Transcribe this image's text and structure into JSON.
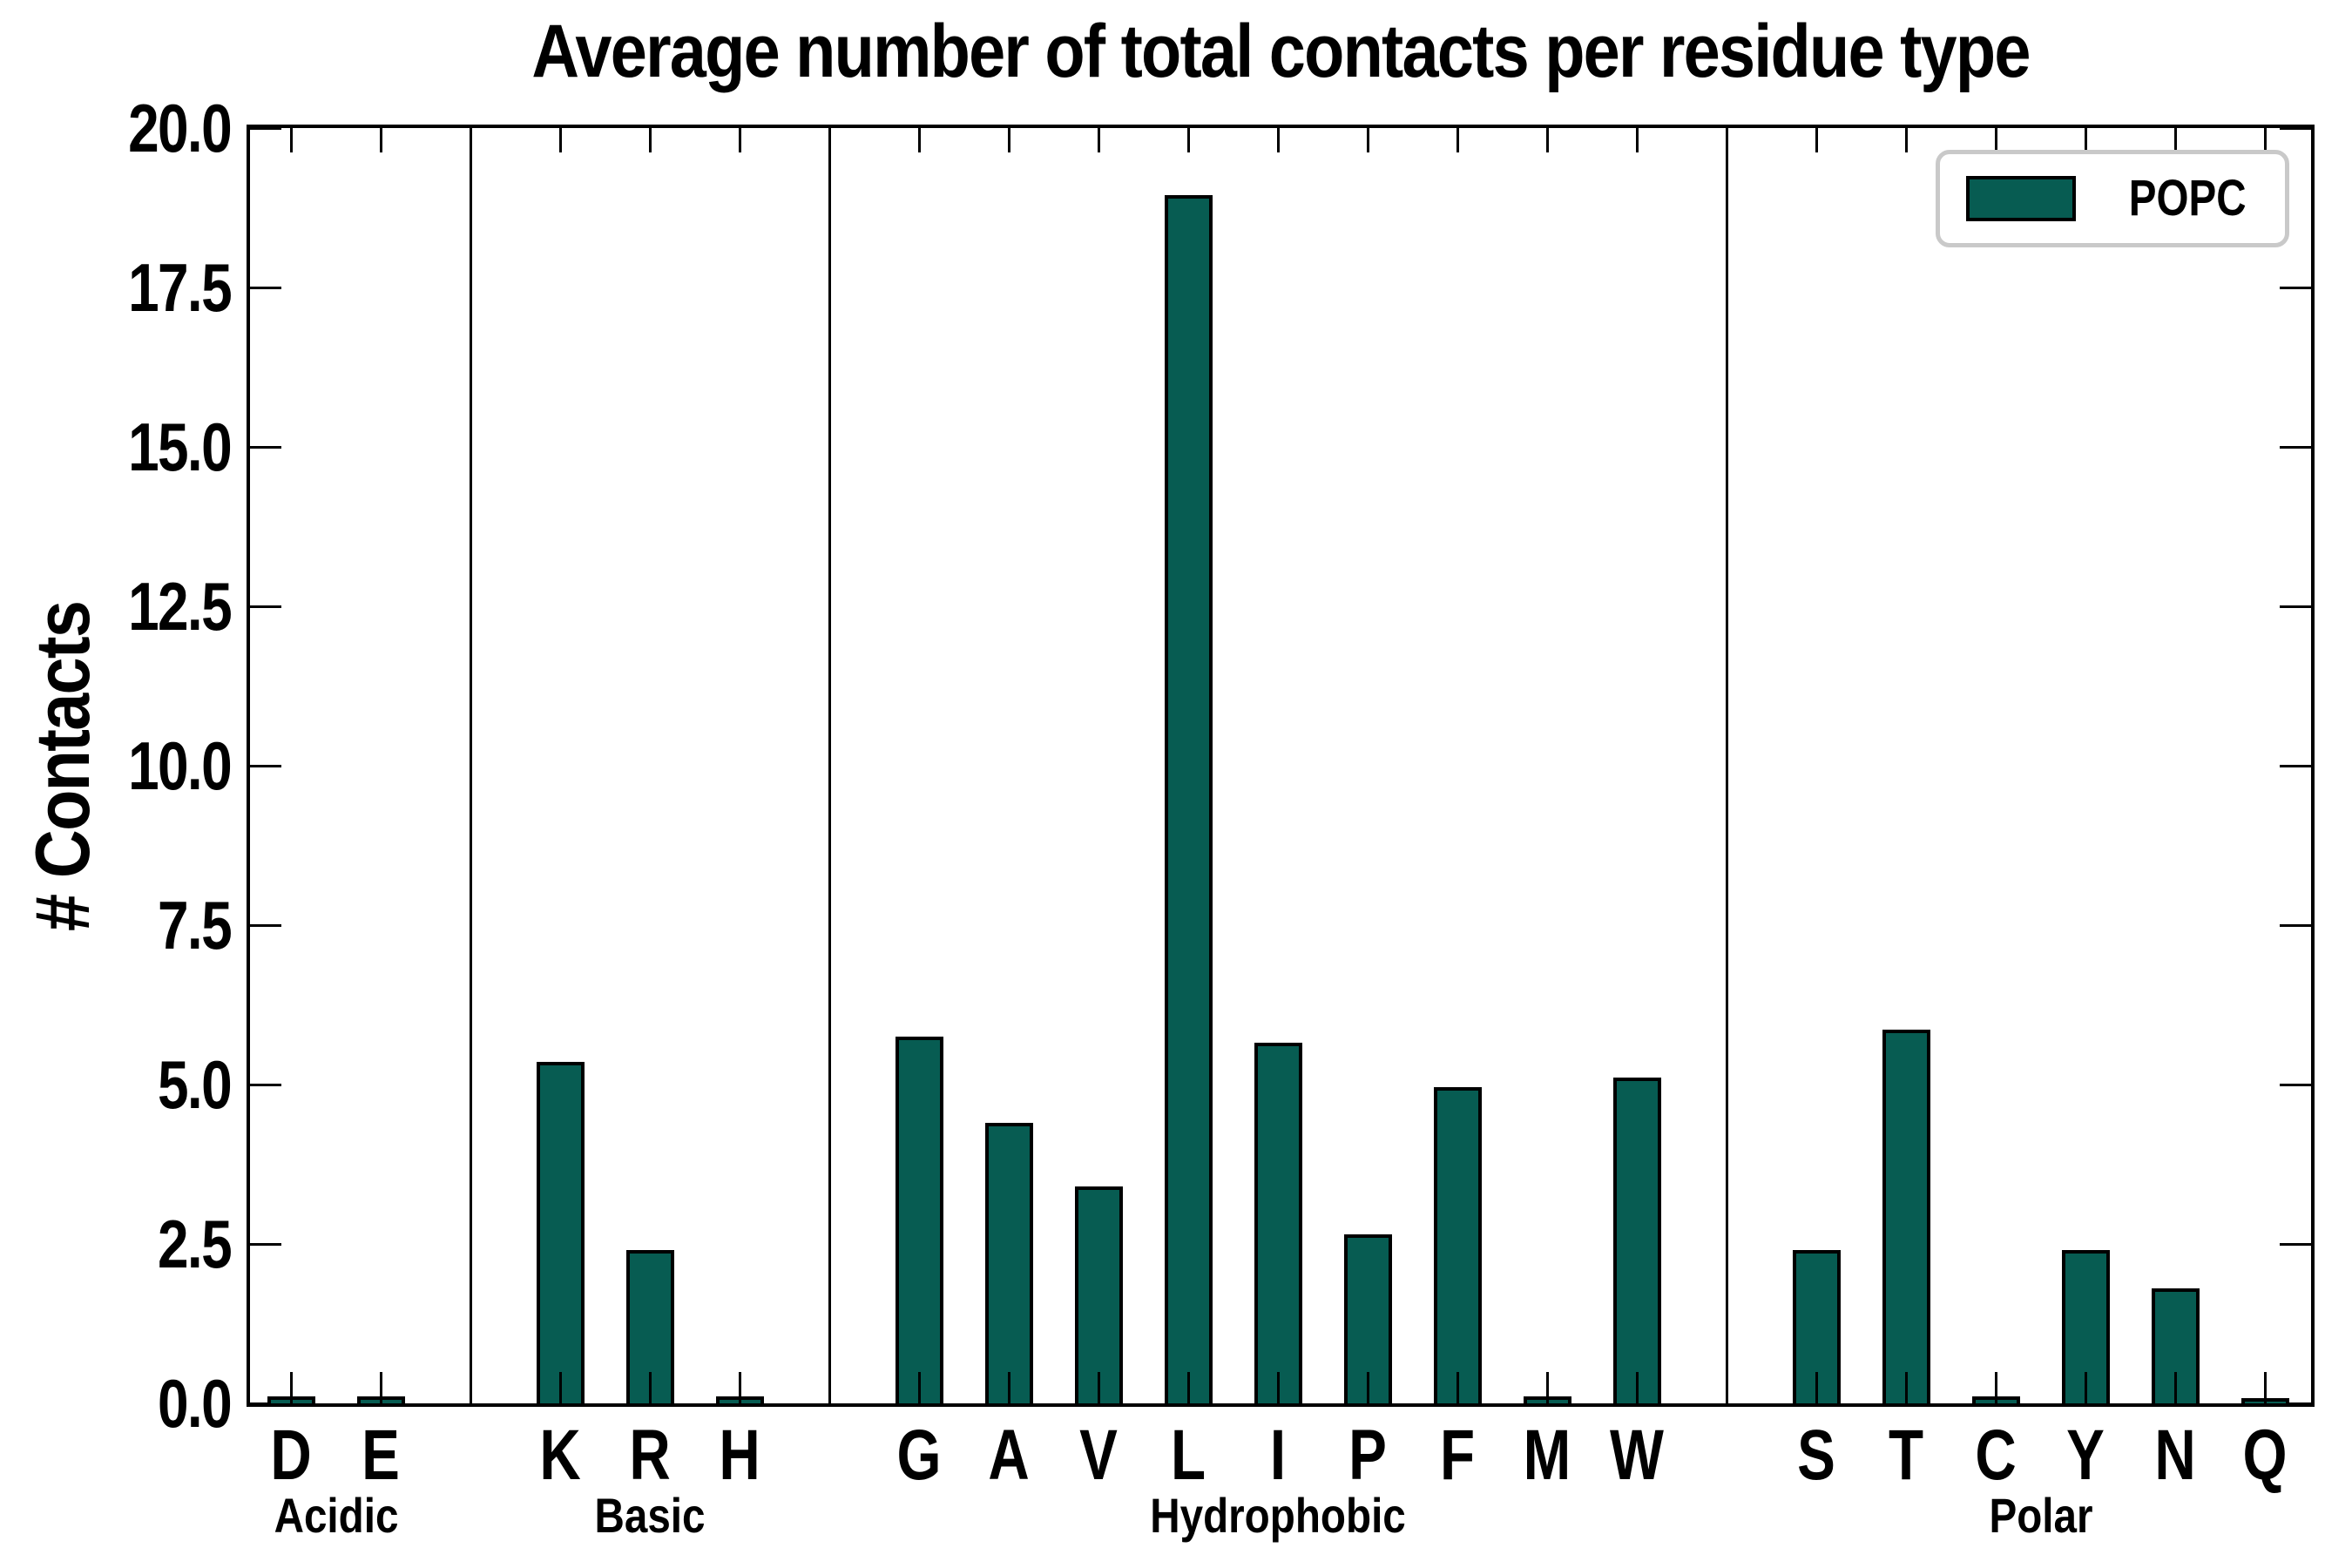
{
  "chart_data": {
    "type": "bar",
    "title": "Average number of total contacts per residue type",
    "ylabel": "# Contacts",
    "ylim": [
      0,
      20
    ],
    "ytick_step": 2.5,
    "ytick_labels": [
      "0.0",
      "2.5",
      "5.0",
      "7.5",
      "10.0",
      "12.5",
      "15.0",
      "17.5",
      "20.0"
    ],
    "grid": false,
    "legend": {
      "position": "upper right",
      "entries": [
        {
          "label": "POPC",
          "color": "#075c52",
          "edge_color": "#000000"
        }
      ]
    },
    "bar_color": "#075c52",
    "bar_edge_color": "#000000",
    "groups": [
      {
        "label": "Acidic",
        "categories": [
          "D",
          "E"
        ],
        "values": [
          0.05,
          0.05
        ]
      },
      {
        "label": "Basic",
        "categories": [
          "K",
          "R",
          "H"
        ],
        "values": [
          5.3,
          2.35,
          0.05
        ]
      },
      {
        "label": "Hydrophobic",
        "categories": [
          "G",
          "A",
          "V",
          "L",
          "I",
          "P",
          "F",
          "M",
          "W"
        ],
        "values": [
          5.7,
          4.35,
          3.35,
          18.9,
          5.6,
          2.6,
          4.9,
          0.05,
          5.05
        ]
      },
      {
        "label": "Polar",
        "categories": [
          "S",
          "T",
          "C",
          "Y",
          "N",
          "Q"
        ],
        "values": [
          2.35,
          5.8,
          0.05,
          2.35,
          1.75,
          0.03
        ]
      }
    ]
  }
}
